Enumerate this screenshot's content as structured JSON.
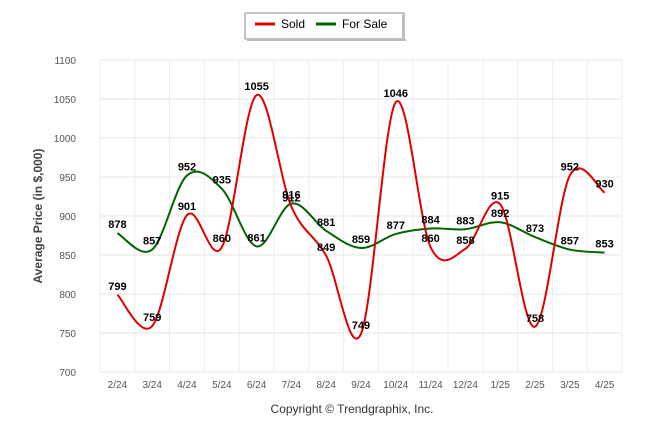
{
  "chart_data": {
    "type": "line",
    "ylabel": "Average Price (in $,000)",
    "xlabel": "",
    "ylim": [
      700,
      1100
    ],
    "yticks": [
      700,
      750,
      800,
      850,
      900,
      950,
      1000,
      1050,
      1100
    ],
    "categories": [
      "2/24",
      "3/24",
      "4/24",
      "5/24",
      "6/24",
      "7/24",
      "8/24",
      "9/24",
      "10/24",
      "11/24",
      "12/24",
      "1/25",
      "2/25",
      "3/25",
      "4/25"
    ],
    "series": [
      {
        "name": "Sold",
        "color": "#e00000",
        "values": [
          799,
          759,
          901,
          860,
          1055,
          912,
          849,
          749,
          1046,
          860,
          858,
          915,
          758,
          952,
          930
        ]
      },
      {
        "name": "For Sale",
        "color": "#006400",
        "values": [
          878,
          857,
          952,
          935,
          861,
          916,
          881,
          859,
          877,
          884,
          883,
          892,
          873,
          857,
          853
        ]
      }
    ],
    "legend": {
      "placement": "top-center"
    },
    "grid": true
  },
  "footer": "Copyright © Trendgraphix, Inc."
}
